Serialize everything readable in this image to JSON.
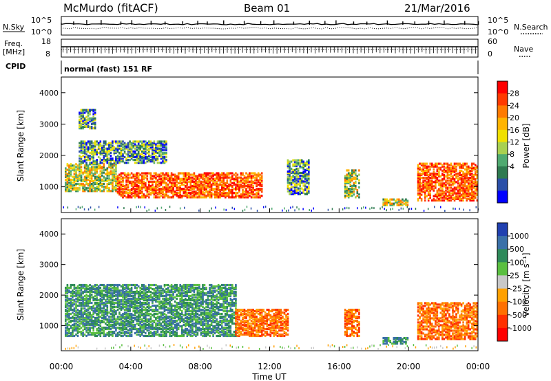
{
  "header": {
    "title": "McMurdo (fitACF)",
    "beam": "Beam 01",
    "date": "21/Mar/2016"
  },
  "status_panels": {
    "nsky_label": "N.Sky",
    "nsearch_label": "N.Search",
    "noise_ticks_left": [
      "10^5",
      "10^0"
    ],
    "noise_ticks_right": [
      "10^5",
      "10^0"
    ],
    "freq_label": "Freq.",
    "freq_unit": "[MHz]",
    "freq_ticks": [
      "18",
      "8"
    ],
    "nave_label": "Nave",
    "nave_ticks": [
      "60",
      "0"
    ],
    "cpid_label": "CPID",
    "cpid_text": "normal (fast) 151 RF"
  },
  "chart_data": [
    {
      "type": "heatmap",
      "name": "power",
      "ylabel": "Slant Range [km]",
      "y_ticks": [
        1000,
        2000,
        3000,
        4000
      ],
      "ylim": [
        180,
        4500
      ],
      "xlim_hours": [
        0,
        24
      ],
      "colorbar": {
        "label": "Power [dB]",
        "ticks": [
          "28",
          "24",
          "20",
          "16",
          "12",
          "8",
          "4"
        ],
        "colors": [
          "#ff0000",
          "#ff3a00",
          "#ff7a00",
          "#ffb400",
          "#f0e000",
          "#a8d050",
          "#4faa70",
          "#2e7a50",
          "#2a4fa8",
          "#0000ff"
        ]
      },
      "regions": [
        {
          "t": [
            0.2,
            3.2
          ],
          "r": [
            900,
            1800
          ],
          "level": "mid"
        },
        {
          "t": [
            3.2,
            11.5
          ],
          "r": [
            700,
            1500
          ],
          "level": "high"
        },
        {
          "t": [
            1,
            6
          ],
          "r": [
            1800,
            2500
          ],
          "level": "low"
        },
        {
          "t": [
            1,
            2
          ],
          "r": [
            2900,
            3500
          ],
          "level": "low"
        },
        {
          "t": [
            13,
            14.2
          ],
          "r": [
            800,
            1900
          ],
          "level": "low"
        },
        {
          "t": [
            16.3,
            17.2
          ],
          "r": [
            700,
            1600
          ],
          "level": "mid"
        },
        {
          "t": [
            18.5,
            20
          ],
          "r": [
            450,
            650
          ],
          "level": "mid"
        },
        {
          "t": [
            20.5,
            24
          ],
          "r": [
            600,
            1800
          ],
          "level": "high"
        }
      ]
    },
    {
      "type": "heatmap",
      "name": "velocity",
      "ylabel": "Slant Range [km]",
      "y_ticks": [
        1000,
        2000,
        3000,
        4000
      ],
      "ylim": [
        180,
        4500
      ],
      "xlim_hours": [
        0,
        24
      ],
      "xlabel": "Time UT",
      "x_ticks": [
        "00:00",
        "04:00",
        "08:00",
        "12:00",
        "16:00",
        "20:00",
        "00:00"
      ],
      "colorbar": {
        "label": "Velocity [m s⁻¹]",
        "ticks": [
          "1000",
          "500",
          "100",
          "25",
          "-25",
          "-100",
          "-500",
          "-1000"
        ],
        "colors": [
          "#2040b0",
          "#3a70a8",
          "#2e8a5a",
          "#5abf40",
          "#c8c8c8",
          "#ffa000",
          "#ff7000",
          "#ff3000",
          "#ff0000"
        ]
      },
      "regions": [
        {
          "t": [
            0.2,
            10
          ],
          "r": [
            700,
            2400
          ],
          "level": "positive"
        },
        {
          "t": [
            10,
            13
          ],
          "r": [
            700,
            1600
          ],
          "level": "negative"
        },
        {
          "t": [
            16.3,
            17.2
          ],
          "r": [
            700,
            1600
          ],
          "level": "negative"
        },
        {
          "t": [
            18.5,
            20
          ],
          "r": [
            450,
            650
          ],
          "level": "positive"
        },
        {
          "t": [
            20.5,
            24
          ],
          "r": [
            600,
            1800
          ],
          "level": "negative"
        }
      ]
    }
  ]
}
